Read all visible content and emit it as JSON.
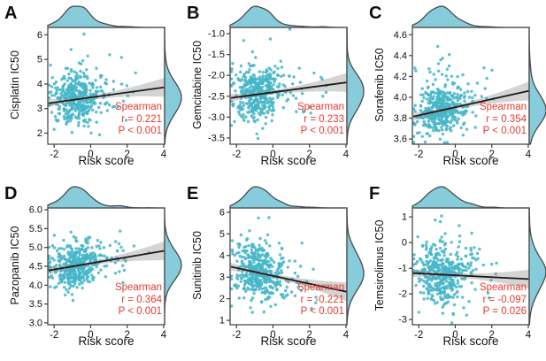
{
  "figure": {
    "background": "#ffffff",
    "description": "Six joint scatter plots (A-F) of drug IC50 versus Risk score, each with top and right marginal density curves, a linear fit with confidence band, and Spearman correlation annotation."
  },
  "colors": {
    "point": "#45b6c8",
    "density_fill": "#86ccdb",
    "density_stroke": "#4a4a4a",
    "regression_line": "#1b1b1b",
    "ci_band": "#8f8f8f",
    "annotation_red": "#e8392f",
    "axis": "#3c3c3c",
    "tick_text": "#111111"
  },
  "chart_data": [
    {
      "panel": "A",
      "type": "scatter",
      "title": "",
      "xlabel": "Risk score",
      "ylabel": "Cisplatin IC50",
      "xlim": [
        -2.35,
        4.05
      ],
      "ylim": [
        1.55,
        6.3
      ],
      "xticks": [
        -2,
        0,
        2,
        4
      ],
      "yticks": [
        2,
        3,
        4,
        5,
        6
      ],
      "ytick_decimals": 0,
      "spearman": {
        "label": "Spearman",
        "r": "r = 0.221",
        "p": "P < 0.001"
      },
      "regression": {
        "x0": -2.3,
        "y0": 3.22,
        "x1": 4.0,
        "y1": 3.86
      },
      "marginals": {
        "top": true,
        "right": true
      },
      "sim": {
        "seed": 11,
        "n": 430,
        "x_mean": -0.9,
        "x_sd": 0.62,
        "tail_frac": 0.15,
        "tail_mu": -0.45,
        "tail_scale": 1.25,
        "noise_sd": 0.5,
        "out_frac": 0.08,
        "out_scale": 0.85,
        "out_dir": 1
      }
    },
    {
      "panel": "B",
      "type": "scatter",
      "title": "",
      "xlabel": "Risk score",
      "ylabel": "Gemcitabine IC50",
      "xlim": [
        -2.35,
        4.05
      ],
      "ylim": [
        -3.65,
        -0.85
      ],
      "xticks": [
        -2,
        0,
        2,
        4
      ],
      "yticks": [
        -1.0,
        -1.5,
        -2.0,
        -2.5,
        -3.0,
        -3.5
      ],
      "ytick_decimals": 1,
      "spearman": {
        "label": "Spearman",
        "r": "r = 0.233",
        "p": "P < 0.001"
      },
      "regression": {
        "x0": -2.3,
        "y0": -2.54,
        "x1": 4.0,
        "y1": -2.17
      },
      "marginals": {
        "top": true,
        "right": true
      },
      "sim": {
        "seed": 22,
        "n": 430,
        "x_mean": -0.9,
        "x_sd": 0.62,
        "tail_frac": 0.15,
        "tail_mu": -0.45,
        "tail_scale": 1.25,
        "noise_sd": 0.32,
        "out_frac": 0.07,
        "out_scale": 0.6,
        "out_dir": 1
      }
    },
    {
      "panel": "C",
      "type": "scatter",
      "title": "",
      "xlabel": "Risk score",
      "ylabel": "Sorafenib IC50",
      "xlim": [
        -2.35,
        4.05
      ],
      "ylim": [
        3.55,
        4.67
      ],
      "xticks": [
        -2,
        0,
        2,
        4
      ],
      "yticks": [
        3.6,
        3.8,
        4.0,
        4.2,
        4.4,
        4.6
      ],
      "ytick_decimals": 1,
      "spearman": {
        "label": "Spearman",
        "r": "r = 0.354",
        "p": "P < 0.001"
      },
      "regression": {
        "x0": -2.3,
        "y0": 3.815,
        "x1": 4.0,
        "y1": 4.06
      },
      "marginals": {
        "top": true,
        "right": true
      },
      "sim": {
        "seed": 33,
        "n": 430,
        "x_mean": -0.9,
        "x_sd": 0.62,
        "tail_frac": 0.15,
        "tail_mu": -0.45,
        "tail_scale": 1.25,
        "noise_sd": 0.105,
        "out_frac": 0.1,
        "out_scale": 0.28,
        "out_dir": 1
      }
    },
    {
      "panel": "D",
      "type": "scatter",
      "title": "",
      "xlabel": "Risk score",
      "ylabel": "Pazopanib IC50",
      "xlim": [
        -2.35,
        4.05
      ],
      "ylim": [
        2.95,
        6.05
      ],
      "xticks": [
        -2,
        0,
        2,
        4
      ],
      "yticks": [
        3.0,
        3.5,
        4.0,
        4.5,
        5.0,
        5.5,
        6.0
      ],
      "ytick_decimals": 1,
      "spearman": {
        "label": "Spearman",
        "r": "r = 0.364",
        "p": "P < 0.001"
      },
      "regression": {
        "x0": -2.3,
        "y0": 4.39,
        "x1": 4.0,
        "y1": 4.91
      },
      "marginals": {
        "top": true,
        "right": true
      },
      "sim": {
        "seed": 44,
        "n": 430,
        "x_mean": -0.9,
        "x_sd": 0.62,
        "tail_frac": 0.15,
        "tail_mu": -0.45,
        "tail_scale": 1.25,
        "noise_sd": 0.28,
        "out_frac": 0.06,
        "out_scale": 0.45,
        "out_dir": 1
      }
    },
    {
      "panel": "E",
      "type": "scatter",
      "title": "",
      "xlabel": "Risk score",
      "ylabel": "Sunitinib IC50",
      "xlim": [
        -2.35,
        4.05
      ],
      "ylim": [
        0.8,
        6.2
      ],
      "xticks": [
        -2,
        0,
        2,
        4
      ],
      "yticks": [
        1,
        2,
        3,
        4,
        5,
        6
      ],
      "ytick_decimals": 0,
      "spearman": {
        "label": "Spearman",
        "r": "r = -0.221",
        "p": "P < 0.001"
      },
      "regression": {
        "x0": -2.3,
        "y0": 3.48,
        "x1": 4.0,
        "y1": 2.33
      },
      "marginals": {
        "top": true,
        "right": true
      },
      "sim": {
        "seed": 55,
        "n": 430,
        "x_mean": -0.9,
        "x_sd": 0.62,
        "tail_frac": 0.15,
        "tail_mu": -0.45,
        "tail_scale": 1.25,
        "noise_sd": 0.7,
        "out_frac": 0.06,
        "out_scale": 0.85,
        "out_dir": 1
      }
    },
    {
      "panel": "F",
      "type": "scatter",
      "title": "",
      "xlabel": "Risk score",
      "ylabel": "Temsirolimus IC50",
      "xlim": [
        -2.35,
        4.05
      ],
      "ylim": [
        -3.2,
        1.35
      ],
      "xticks": [
        -2,
        0,
        2,
        4
      ],
      "yticks": [
        -3,
        -2,
        -1,
        0,
        1
      ],
      "ytick_decimals": 0,
      "spearman": {
        "label": "Spearman",
        "r": "r = -0.097",
        "p": "P = 0.026"
      },
      "regression": {
        "x0": -2.3,
        "y0": -1.19,
        "x1": 4.0,
        "y1": -1.42
      },
      "marginals": {
        "top": true,
        "right": true
      },
      "sim": {
        "seed": 66,
        "n": 430,
        "x_mean": -0.9,
        "x_sd": 0.62,
        "tail_frac": 0.15,
        "tail_mu": -0.45,
        "tail_scale": 1.25,
        "noise_sd": 0.6,
        "out_frac": 0.07,
        "out_scale": 0.75,
        "out_dir": 1
      }
    }
  ]
}
